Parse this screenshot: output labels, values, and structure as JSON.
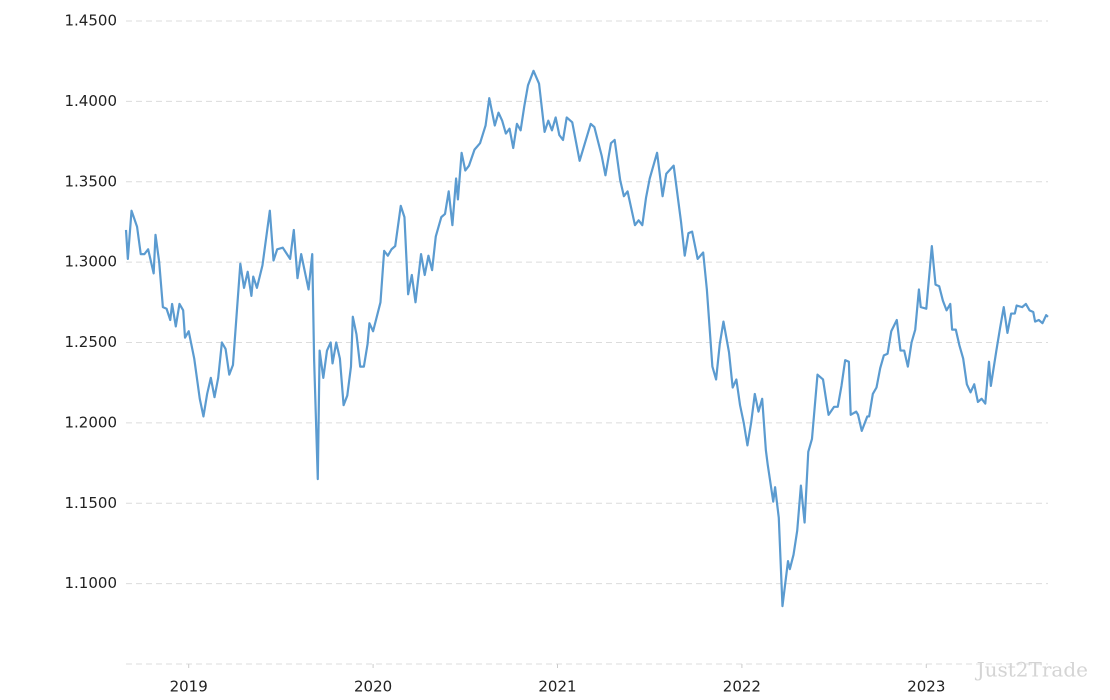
{
  "chart_data": {
    "type": "line",
    "watermark": "Just2Trade",
    "xlim": [
      2018.66,
      2023.66
    ],
    "xticks": [
      2019,
      2020,
      2021,
      2022,
      2023
    ],
    "ylim": [
      1.05,
      1.45
    ],
    "yticks": [
      {
        "value": 1.1,
        "label": "1.1000"
      },
      {
        "value": 1.15,
        "label": "1.1500"
      },
      {
        "value": 1.2,
        "label": "1.2000"
      },
      {
        "value": 1.25,
        "label": "1.2500"
      },
      {
        "value": 1.3,
        "label": "1.3000"
      },
      {
        "value": 1.35,
        "label": "1.3500"
      },
      {
        "value": 1.4,
        "label": "1.4000"
      },
      {
        "value": 1.45,
        "label": "1.4500"
      }
    ],
    "grid": true,
    "series": [
      {
        "color": "#5b9bd0",
        "x": [
          2018.66,
          2018.67,
          2018.69,
          2018.72,
          2018.74,
          2018.76,
          2018.78,
          2018.81,
          2018.82,
          2018.84,
          2018.86,
          2018.88,
          2018.9,
          2018.91,
          2018.93,
          2018.95,
          2018.97,
          2018.98,
          2019.0,
          2019.03,
          2019.06,
          2019.08,
          2019.1,
          2019.12,
          2019.14,
          2019.16,
          2019.18,
          2019.2,
          2019.22,
          2019.24,
          2019.28,
          2019.3,
          2019.32,
          2019.34,
          2019.35,
          2019.37,
          2019.4,
          2019.44,
          2019.46,
          2019.48,
          2019.51,
          2019.55,
          2019.57,
          2019.59,
          2019.61,
          2019.65,
          2019.67,
          2019.68,
          2019.7,
          2019.71,
          2019.73,
          2019.75,
          2019.77,
          2019.78,
          2019.8,
          2019.82,
          2019.84,
          2019.86,
          2019.88,
          2019.89,
          2019.91,
          2019.93,
          2019.95,
          2019.97,
          2019.98,
          2020.0,
          2020.04,
          2020.06,
          2020.08,
          2020.1,
          2020.12,
          2020.15,
          2020.17,
          2020.19,
          2020.21,
          2020.23,
          2020.26,
          2020.28,
          2020.3,
          2020.32,
          2020.34,
          2020.37,
          2020.39,
          2020.41,
          2020.43,
          2020.45,
          2020.46,
          2020.48,
          2020.5,
          2020.52,
          2020.55,
          2020.58,
          2020.61,
          2020.63,
          2020.66,
          2020.68,
          2020.7,
          2020.72,
          2020.74,
          2020.76,
          2020.78,
          2020.8,
          2020.82,
          2020.84,
          2020.87,
          2020.9,
          2020.93,
          2020.95,
          2020.97,
          2020.99,
          2021.01,
          2021.03,
          2021.05,
          2021.08,
          2021.12,
          2021.18,
          2021.2,
          2021.24,
          2021.26,
          2021.29,
          2021.31,
          2021.34,
          2021.36,
          2021.38,
          2021.42,
          2021.44,
          2021.46,
          2021.48,
          2021.5,
          2021.54,
          2021.57,
          2021.59,
          2021.63,
          2021.67,
          2021.69,
          2021.71,
          2021.73,
          2021.76,
          2021.79,
          2021.81,
          2021.84,
          2021.86,
          2021.88,
          2021.9,
          2021.93,
          2021.95,
          2021.97,
          2021.99,
          2022.01,
          2022.03,
          2022.05,
          2022.07,
          2022.09,
          2022.11,
          2022.13,
          2022.14,
          2022.17,
          2022.18,
          2022.2,
          2022.22,
          2022.25,
          2022.26,
          2022.28,
          2022.3,
          2022.32,
          2022.34,
          2022.36,
          2022.38,
          2022.41,
          2022.44,
          2022.46,
          2022.47,
          2022.5,
          2022.52,
          2022.54,
          2022.56,
          2022.58,
          2022.59,
          2022.62,
          2022.63,
          2022.65,
          2022.68,
          2022.69,
          2022.71,
          2022.73,
          2022.75,
          2022.77,
          2022.79,
          2022.81,
          2022.84,
          2022.86,
          2022.88,
          2022.9,
          2022.92,
          2022.94,
          2022.96,
          2022.97,
          2023.0,
          2023.03,
          2023.05,
          2023.07,
          2023.09,
          2023.11,
          2023.13,
          2023.14,
          2023.16,
          2023.18,
          2023.2,
          2023.22,
          2023.24,
          2023.26,
          2023.28,
          2023.3,
          2023.32,
          2023.34,
          2023.35,
          2023.38,
          2023.4,
          2023.42,
          2023.44,
          2023.46,
          2023.48,
          2023.49,
          2023.52,
          2023.54,
          2023.56,
          2023.58,
          2023.59,
          2023.61,
          2023.63,
          2023.65,
          2023.66
        ],
        "values": [
          1.32,
          1.302,
          1.332,
          1.322,
          1.305,
          1.305,
          1.308,
          1.293,
          1.317,
          1.3,
          1.272,
          1.271,
          1.264,
          1.274,
          1.26,
          1.274,
          1.27,
          1.253,
          1.257,
          1.24,
          1.215,
          1.204,
          1.218,
          1.228,
          1.216,
          1.228,
          1.25,
          1.246,
          1.23,
          1.236,
          1.299,
          1.284,
          1.294,
          1.279,
          1.291,
          1.284,
          1.298,
          1.332,
          1.301,
          1.308,
          1.309,
          1.302,
          1.32,
          1.29,
          1.305,
          1.283,
          1.305,
          1.24,
          1.165,
          1.245,
          1.228,
          1.245,
          1.25,
          1.237,
          1.25,
          1.24,
          1.211,
          1.217,
          1.235,
          1.266,
          1.255,
          1.235,
          1.235,
          1.249,
          1.262,
          1.257,
          1.275,
          1.307,
          1.304,
          1.308,
          1.31,
          1.335,
          1.328,
          1.28,
          1.292,
          1.275,
          1.305,
          1.292,
          1.304,
          1.295,
          1.316,
          1.328,
          1.33,
          1.344,
          1.323,
          1.352,
          1.339,
          1.368,
          1.357,
          1.36,
          1.37,
          1.374,
          1.385,
          1.402,
          1.385,
          1.393,
          1.388,
          1.38,
          1.383,
          1.371,
          1.386,
          1.382,
          1.397,
          1.41,
          1.419,
          1.411,
          1.381,
          1.388,
          1.382,
          1.39,
          1.379,
          1.376,
          1.39,
          1.387,
          1.363,
          1.386,
          1.384,
          1.366,
          1.354,
          1.374,
          1.376,
          1.351,
          1.341,
          1.344,
          1.323,
          1.326,
          1.323,
          1.34,
          1.352,
          1.368,
          1.341,
          1.355,
          1.36,
          1.325,
          1.304,
          1.318,
          1.319,
          1.302,
          1.306,
          1.283,
          1.235,
          1.227,
          1.249,
          1.263,
          1.244,
          1.222,
          1.227,
          1.211,
          1.2,
          1.186,
          1.2,
          1.218,
          1.207,
          1.215,
          1.183,
          1.174,
          1.151,
          1.16,
          1.141,
          1.086,
          1.114,
          1.109,
          1.118,
          1.133,
          1.161,
          1.138,
          1.182,
          1.19,
          1.23,
          1.227,
          1.212,
          1.205,
          1.21,
          1.21,
          1.223,
          1.239,
          1.238,
          1.205,
          1.207,
          1.205,
          1.195,
          1.204,
          1.204,
          1.218,
          1.222,
          1.234,
          1.242,
          1.243,
          1.257,
          1.264,
          1.245,
          1.245,
          1.235,
          1.25,
          1.258,
          1.283,
          1.272,
          1.271,
          1.31,
          1.286,
          1.285,
          1.276,
          1.27,
          1.274,
          1.258,
          1.258,
          1.248,
          1.24,
          1.224,
          1.219,
          1.224,
          1.213,
          1.215,
          1.212,
          1.238,
          1.223,
          1.245,
          1.259,
          1.272,
          1.256,
          1.268,
          1.268,
          1.273,
          1.272,
          1.274,
          1.27,
          1.269,
          1.263,
          1.264,
          1.262,
          1.267,
          1.266
        ]
      }
    ]
  }
}
